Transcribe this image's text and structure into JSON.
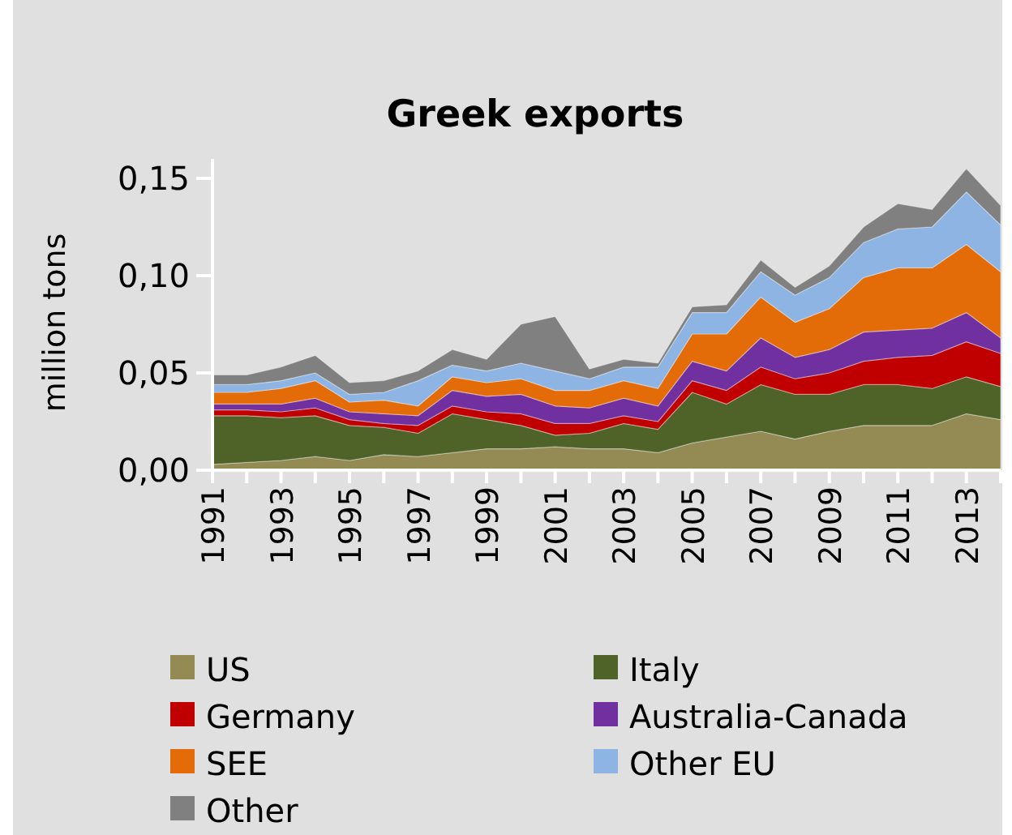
{
  "chart_data": {
    "type": "area",
    "stacked": true,
    "title": "Greek exports",
    "ylabel": "million tons",
    "categories": [
      "1991",
      null,
      "1993",
      null,
      "1995",
      null,
      "1997",
      null,
      "1999",
      null,
      "2001",
      null,
      "2003",
      null,
      "2005",
      null,
      "2007",
      null,
      "2009",
      null,
      "2011",
      null,
      "2013",
      null
    ],
    "ylim": [
      0,
      0.16
    ],
    "yticks": [
      {
        "value": 0,
        "label": "0,00"
      },
      {
        "value": 0.05,
        "label": "0,05"
      },
      {
        "value": 0.1,
        "label": "0,10"
      },
      {
        "value": 0.15,
        "label": "0,15"
      }
    ],
    "grid": false,
    "legend": "bottom",
    "series": [
      {
        "name": "US",
        "color": "#948a54",
        "values": [
          0.003,
          0.004,
          0.005,
          0.007,
          0.005,
          0.008,
          0.007,
          0.009,
          0.011,
          0.011,
          0.012,
          0.011,
          0.011,
          0.009,
          0.014,
          0.017,
          0.02,
          0.016,
          0.02,
          0.023,
          0.023,
          0.023,
          0.029,
          0.026
        ]
      },
      {
        "name": "Italy",
        "color": "#4f6228",
        "values": [
          0.025,
          0.024,
          0.022,
          0.021,
          0.018,
          0.014,
          0.012,
          0.02,
          0.015,
          0.012,
          0.006,
          0.008,
          0.013,
          0.012,
          0.026,
          0.017,
          0.024,
          0.023,
          0.019,
          0.021,
          0.021,
          0.019,
          0.019,
          0.017
        ]
      },
      {
        "name": "Germany",
        "color": "#c00000",
        "values": [
          0.003,
          0.003,
          0.003,
          0.004,
          0.003,
          0.002,
          0.004,
          0.004,
          0.004,
          0.006,
          0.006,
          0.005,
          0.004,
          0.004,
          0.006,
          0.007,
          0.009,
          0.008,
          0.011,
          0.012,
          0.014,
          0.017,
          0.018,
          0.017
        ]
      },
      {
        "name": "Australia-Canada",
        "color": "#7030a0",
        "values": [
          0.003,
          0.003,
          0.004,
          0.005,
          0.004,
          0.005,
          0.005,
          0.008,
          0.008,
          0.01,
          0.009,
          0.008,
          0.009,
          0.008,
          0.01,
          0.01,
          0.015,
          0.011,
          0.012,
          0.015,
          0.014,
          0.014,
          0.015,
          0.008
        ]
      },
      {
        "name": "SEE",
        "color": "#e36c09",
        "values": [
          0.006,
          0.006,
          0.008,
          0.009,
          0.005,
          0.007,
          0.005,
          0.007,
          0.007,
          0.008,
          0.008,
          0.009,
          0.009,
          0.009,
          0.014,
          0.019,
          0.021,
          0.018,
          0.021,
          0.028,
          0.032,
          0.031,
          0.035,
          0.034
        ]
      },
      {
        "name": "Other EU",
        "color": "#8db4e2",
        "values": [
          0.004,
          0.004,
          0.004,
          0.004,
          0.004,
          0.004,
          0.013,
          0.006,
          0.006,
          0.008,
          0.01,
          0.006,
          0.007,
          0.011,
          0.011,
          0.011,
          0.013,
          0.014,
          0.016,
          0.018,
          0.02,
          0.021,
          0.027,
          0.024
        ]
      },
      {
        "name": "Other",
        "color": "#808080",
        "values": [
          0.005,
          0.005,
          0.007,
          0.009,
          0.006,
          0.006,
          0.005,
          0.008,
          0.006,
          0.02,
          0.028,
          0.005,
          0.004,
          0.002,
          0.003,
          0.004,
          0.006,
          0.004,
          0.006,
          0.008,
          0.013,
          0.009,
          0.012,
          0.01
        ]
      }
    ]
  }
}
